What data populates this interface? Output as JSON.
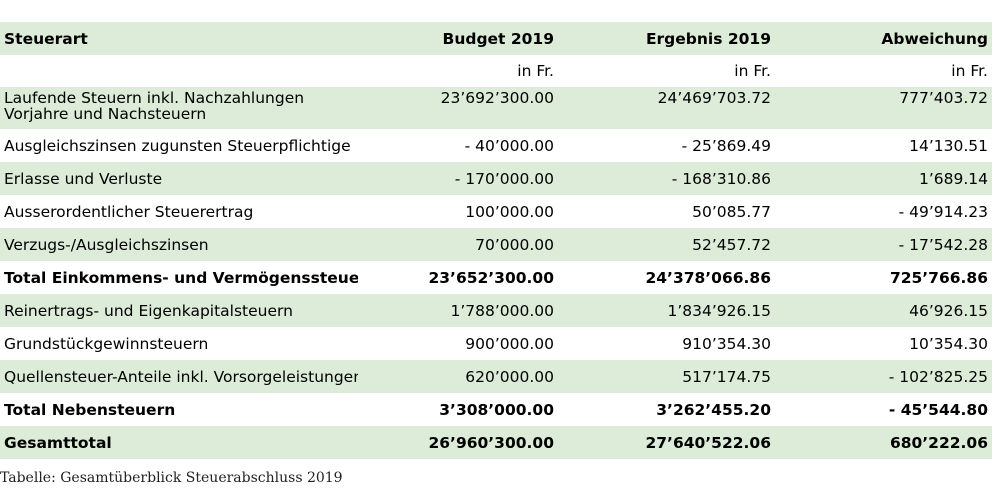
{
  "table": {
    "headers": [
      "Steuerart",
      "Budget 2019",
      "Ergebnis 2019",
      "Abweichung"
    ],
    "units": [
      "",
      "in Fr.",
      "in Fr.",
      "in Fr."
    ],
    "rows": [
      {
        "label": "Laufende Steuern inkl. Nachzahlungen Vorjahre und Nachsteuern",
        "budget": "23’692’300.00",
        "result": "24’469’703.72",
        "diff": "777’403.72"
      },
      {
        "label": "Ausgleichszinsen zugunsten Steuerpflichtige",
        "budget": "- 40’000.00",
        "result": "- 25’869.49",
        "diff": "14’130.51"
      },
      {
        "label": "Erlasse und Verluste",
        "budget": "- 170’000.00",
        "result": "- 168’310.86",
        "diff": "1’689.14"
      },
      {
        "label": "Ausserordentlicher Steuerertrag",
        "budget": "100’000.00",
        "result": "50’085.77",
        "diff": "- 49’914.23"
      },
      {
        "label": "Verzugs-/Ausgleichszinsen",
        "budget": "70’000.00",
        "result": "52’457.72",
        "diff": "- 17’542.28"
      },
      {
        "label": "Total Einkommens- und Vermögenssteuern",
        "budget": "23’652’300.00",
        "result": "24’378’066.86",
        "diff": "725’766.86"
      },
      {
        "label": "Reinertrags- und Eigenkapitalsteuern",
        "budget": "1’788’000.00",
        "result": "1’834’926.15",
        "diff": "46’926.15"
      },
      {
        "label": "Grundstückgewinnsteuern",
        "budget": "900’000.00",
        "result": "910’354.30",
        "diff": "10’354.30"
      },
      {
        "label": "Quellensteuer-Anteile inkl. Vorsorgeleistungen",
        "budget": "620’000.00",
        "result": "517’174.75",
        "diff": "- 102’825.25"
      },
      {
        "label": "Total Nebensteuern",
        "budget": "3’308’000.00",
        "result": "3’262’455.20",
        "diff": "- 45’544.80"
      },
      {
        "label": "Gesamttotal",
        "budget": "26’960’300.00",
        "result": "27’640’522.06",
        "diff": "680’222.06"
      }
    ]
  },
  "caption": "Tabelle: Gesamtüberblick Steuerabschluss 2019",
  "colors": {
    "shade": "#dcecd9"
  }
}
